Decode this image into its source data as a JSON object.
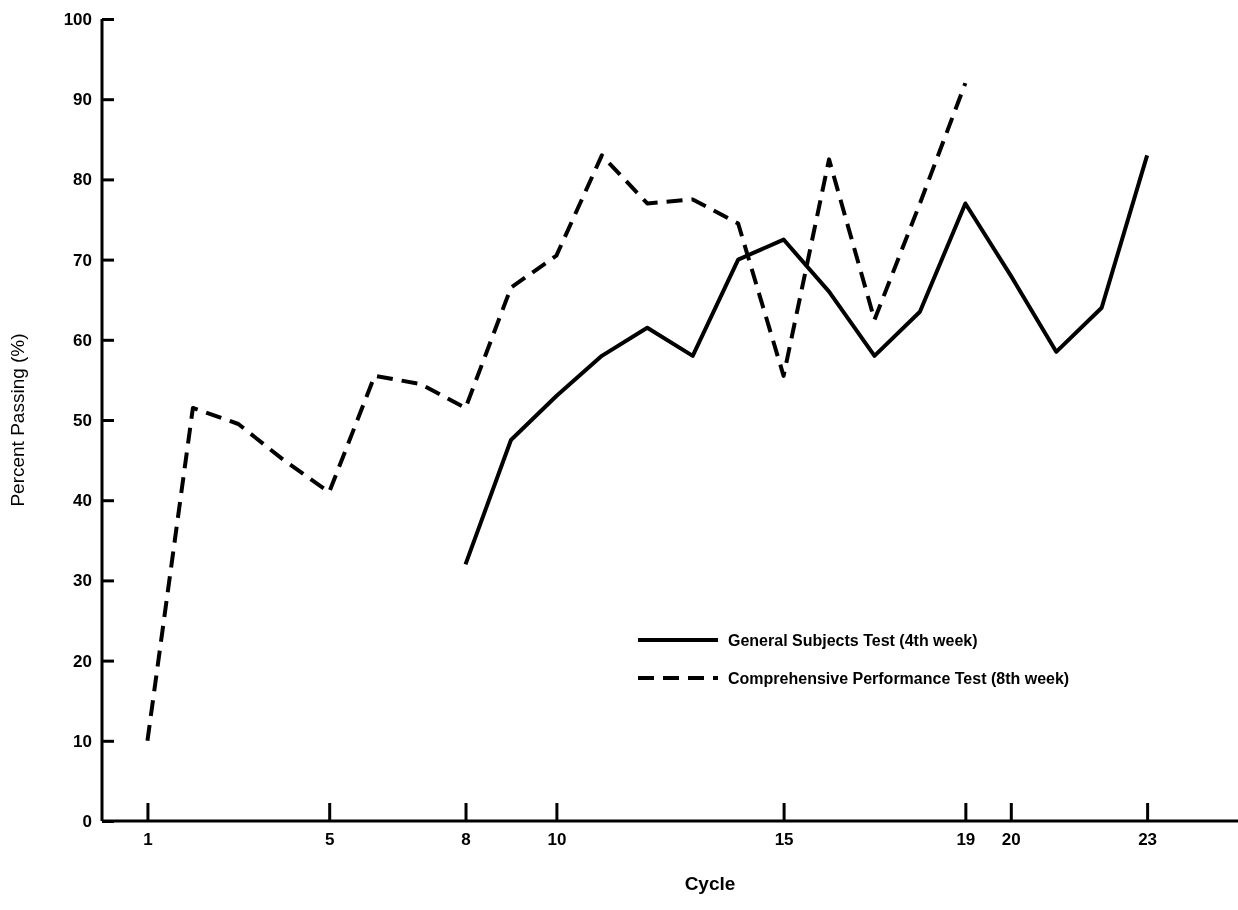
{
  "chart_data": {
    "type": "line",
    "xlabel": "Cycle",
    "ylabel": "Percent Passing (%)",
    "xlim": [
      0,
      25
    ],
    "xticks": [
      1,
      5,
      8,
      10,
      15,
      19,
      20,
      23
    ],
    "ylim": [
      0,
      100
    ],
    "yticks": [
      0,
      10,
      20,
      30,
      40,
      50,
      60,
      70,
      80,
      90,
      100
    ],
    "legend": "bottom right",
    "grid": false,
    "marker": "none",
    "series": [
      {
        "name": "General Subjects Test (4th week)",
        "color": "#000000",
        "line_style": "solid",
        "x": [
          8,
          9,
          10,
          11,
          12,
          13,
          14,
          15,
          16,
          17,
          18,
          19,
          20,
          21,
          22,
          23
        ],
        "values": [
          32,
          47.5,
          53,
          58,
          61.5,
          58,
          70,
          72.5,
          66,
          58,
          63.5,
          77,
          68,
          58.5,
          64,
          83
        ]
      },
      {
        "name": "Comprehensive Performance Test (8th week)",
        "color": "#000000",
        "line_style": "dashed",
        "x": [
          1,
          2,
          3,
          4,
          5,
          6,
          7,
          8,
          9,
          10,
          11,
          12,
          13,
          14,
          15,
          16,
          17,
          18,
          19
        ],
        "values": [
          10,
          51.5,
          49.5,
          45,
          41,
          55.5,
          54.5,
          51.5,
          66.5,
          70.5,
          83,
          77,
          77.5,
          74.5,
          55.5,
          82.5,
          62.5,
          77,
          92
        ]
      }
    ]
  }
}
